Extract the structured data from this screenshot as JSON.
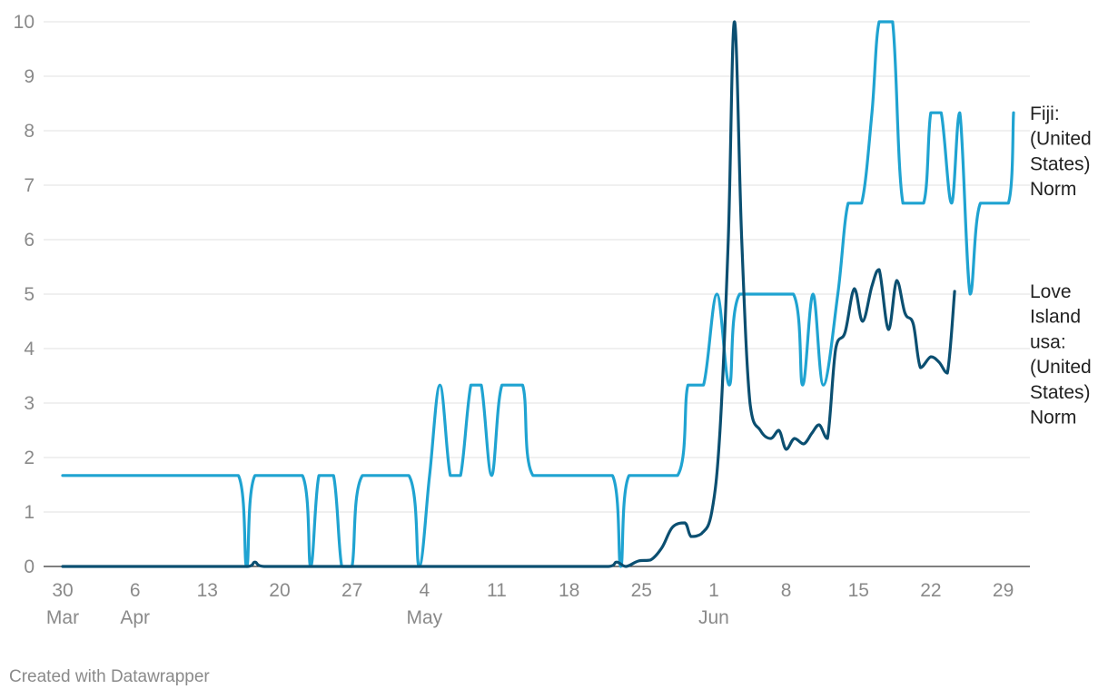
{
  "chart_data": {
    "type": "line",
    "title": "",
    "xlabel": "",
    "ylabel": "",
    "ylim": [
      0,
      10
    ],
    "yticks": [
      "0",
      "1",
      "2",
      "3",
      "4",
      "5",
      "6",
      "7",
      "8",
      "9",
      "10"
    ],
    "grid": true,
    "legend": "end-of-line labels, right",
    "xticks": [
      {
        "day": 0,
        "lines": [
          "30",
          "Mar"
        ]
      },
      {
        "day": 7,
        "lines": [
          "6",
          "Apr"
        ]
      },
      {
        "day": 14,
        "lines": [
          "13"
        ]
      },
      {
        "day": 21,
        "lines": [
          "20"
        ]
      },
      {
        "day": 28,
        "lines": [
          "27"
        ]
      },
      {
        "day": 35,
        "lines": [
          "4",
          "May"
        ]
      },
      {
        "day": 42,
        "lines": [
          "11"
        ]
      },
      {
        "day": 49,
        "lines": [
          "18"
        ]
      },
      {
        "day": 56,
        "lines": [
          "25"
        ]
      },
      {
        "day": 63,
        "lines": [
          "1",
          "Jun"
        ]
      },
      {
        "day": 70,
        "lines": [
          "8"
        ]
      },
      {
        "day": 77,
        "lines": [
          "15"
        ]
      },
      {
        "day": 84,
        "lines": [
          "22"
        ]
      },
      {
        "day": 91,
        "lines": [
          "29"
        ]
      }
    ],
    "series": [
      {
        "name": "Fiji: (United States) Norm",
        "label_lines": [
          "Fiji:",
          "(United",
          "States)",
          "Norm"
        ],
        "color": "#1fa3d1",
        "points": [
          [
            0,
            1.67
          ],
          [
            17,
            1.67
          ],
          [
            17.8,
            0
          ],
          [
            18.6,
            1.67
          ],
          [
            23.2,
            1.67
          ],
          [
            24,
            0
          ],
          [
            24.8,
            1.67
          ],
          [
            26.2,
            1.67
          ],
          [
            27,
            0
          ],
          [
            28,
            0
          ],
          [
            29,
            1.67
          ],
          [
            33.5,
            1.67
          ],
          [
            34.5,
            0
          ],
          [
            35.5,
            1.67
          ],
          [
            36.5,
            3.33
          ],
          [
            37.5,
            1.67
          ],
          [
            38.5,
            1.67
          ],
          [
            39.5,
            3.33
          ],
          [
            40.5,
            3.33
          ],
          [
            41.5,
            1.67
          ],
          [
            42.5,
            3.33
          ],
          [
            44.5,
            3.33
          ],
          [
            45.5,
            1.67
          ],
          [
            53.2,
            1.67
          ],
          [
            54,
            0
          ],
          [
            54.8,
            1.67
          ],
          [
            59.5,
            1.67
          ],
          [
            60.5,
            3.33
          ],
          [
            62,
            3.33
          ],
          [
            63.3,
            5
          ],
          [
            64.5,
            3.33
          ],
          [
            65.5,
            5
          ],
          [
            70.7,
            5
          ],
          [
            71.6,
            3.33
          ],
          [
            72.6,
            5
          ],
          [
            73.6,
            3.33
          ],
          [
            75,
            5
          ],
          [
            76,
            6.67
          ],
          [
            77.3,
            6.67
          ],
          [
            78.3,
            8.33
          ],
          [
            79,
            10
          ],
          [
            80.3,
            10
          ],
          [
            81.3,
            6.67
          ],
          [
            83.3,
            6.67
          ],
          [
            84,
            8.33
          ],
          [
            85,
            8.33
          ],
          [
            86,
            6.67
          ],
          [
            86.8,
            8.33
          ],
          [
            87.8,
            5
          ],
          [
            88.8,
            6.67
          ],
          [
            91.5,
            6.67
          ],
          [
            92,
            8.33
          ]
        ]
      },
      {
        "name": "Love Island usa: (United States) Norm",
        "label_lines": [
          "Love",
          "Island",
          "usa:",
          "(United",
          "States)",
          "Norm"
        ],
        "color": "#0b4f71",
        "points": [
          [
            0,
            0
          ],
          [
            17.9,
            0
          ],
          [
            18.6,
            0.08
          ],
          [
            19.5,
            0
          ],
          [
            52.8,
            0
          ],
          [
            53.6,
            0.08
          ],
          [
            54.5,
            0
          ],
          [
            55.7,
            0.1
          ],
          [
            56.9,
            0.12
          ],
          [
            58,
            0.35
          ],
          [
            59,
            0.72
          ],
          [
            60.2,
            0.8
          ],
          [
            60.8,
            0.55
          ],
          [
            61.8,
            0.6
          ],
          [
            62.8,
            1.0
          ],
          [
            63.6,
            2.5
          ],
          [
            64.4,
            6.0
          ],
          [
            65,
            10
          ],
          [
            65.7,
            6
          ],
          [
            66.5,
            3.0
          ],
          [
            67.5,
            2.5
          ],
          [
            68.5,
            2.35
          ],
          [
            69.3,
            2.5
          ],
          [
            70,
            2.15
          ],
          [
            70.8,
            2.35
          ],
          [
            71.7,
            2.25
          ],
          [
            72.5,
            2.45
          ],
          [
            73.2,
            2.6
          ],
          [
            74,
            2.35
          ],
          [
            74.8,
            4.0
          ],
          [
            75.7,
            4.3
          ],
          [
            76.6,
            5.1
          ],
          [
            77.4,
            4.5
          ],
          [
            78.3,
            5.15
          ],
          [
            79,
            5.45
          ],
          [
            79.9,
            4.35
          ],
          [
            80.7,
            5.25
          ],
          [
            81.5,
            4.65
          ],
          [
            82.3,
            4.45
          ],
          [
            83,
            3.65
          ],
          [
            84,
            3.85
          ],
          [
            84.8,
            3.75
          ],
          [
            85.6,
            3.55
          ],
          [
            86.3,
            5.05
          ]
        ]
      }
    ]
  },
  "footer": {
    "credit": "Created with Datawrapper"
  }
}
